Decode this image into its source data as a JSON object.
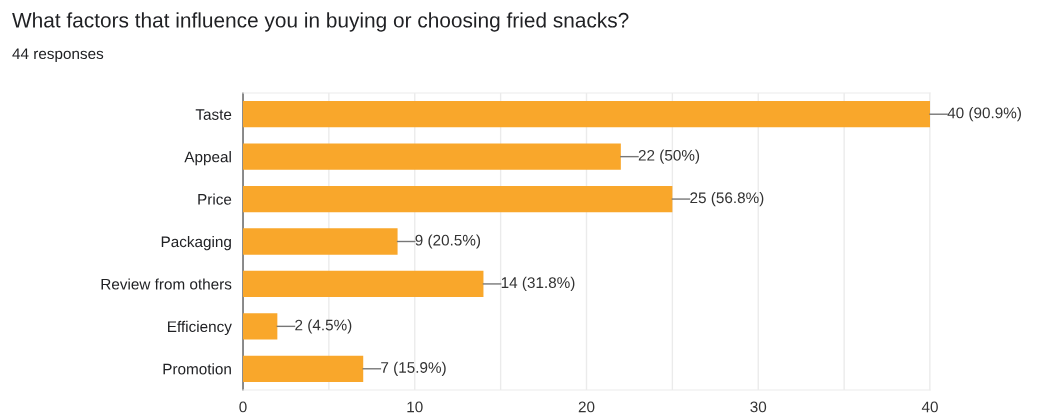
{
  "chart_data": {
    "type": "bar",
    "orientation": "horizontal",
    "title": "What factors that influence you in buying or choosing fried snacks?",
    "subtitle": "44 responses",
    "categories": [
      "Taste",
      "Appeal",
      "Price",
      "Packaging",
      "Review from others",
      "Efficiency",
      "Promotion"
    ],
    "values": [
      40,
      22,
      25,
      9,
      14,
      2,
      7
    ],
    "color": "#f9a72b",
    "value_labels": [
      "40 (90.9%)",
      "22 (50%)",
      "25 (56.8%)",
      "9 (20.5%)",
      "14 (31.8%)",
      "2 (4.5%)",
      "7 (15.9%)"
    ],
    "xlim": [
      0,
      40
    ],
    "xticks": [
      0,
      {
        "value": 5,
        "label": null
      },
      10,
      {
        "value": 15,
        "label": null
      },
      20,
      {
        "value": 25,
        "label": null
      },
      30,
      {
        "value": 35,
        "label": null
      },
      40
    ],
    "grid": "x"
  }
}
